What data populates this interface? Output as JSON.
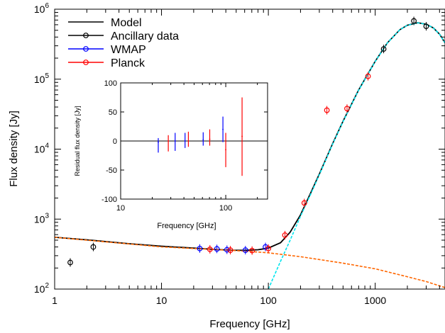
{
  "chart_data": [
    {
      "type": "scatter",
      "xlabel": "Frequency [GHz]",
      "ylabel": "Flux density [Jy]",
      "x_scale": "log",
      "y_scale": "log",
      "xlim": [
        1,
        4500
      ],
      "ylim": [
        100,
        1000000
      ],
      "x_ticks": [
        {
          "value": 1,
          "label": "1"
        },
        {
          "value": 10,
          "label": "10"
        },
        {
          "value": 100,
          "label": "100"
        },
        {
          "value": 1000,
          "label": "1000"
        }
      ],
      "y_ticks": [
        {
          "value": 100,
          "base": "10",
          "exp": "2"
        },
        {
          "value": 1000,
          "base": "10",
          "exp": "3"
        },
        {
          "value": 10000,
          "base": "10",
          "exp": "4"
        },
        {
          "value": 100000,
          "base": "10",
          "exp": "5"
        },
        {
          "value": 1000000,
          "base": "10",
          "exp": "6"
        }
      ],
      "grid": false,
      "legend_position": "top-left",
      "legend": [
        {
          "label": "Model",
          "color": "#000000",
          "marker": false
        },
        {
          "label": "Ancillary data",
          "color": "#000000",
          "marker": true
        },
        {
          "label": "WMAP",
          "color": "#0000ff",
          "marker": true
        },
        {
          "label": "Planck",
          "color": "#ff0000",
          "marker": true
        }
      ],
      "series": [
        {
          "name": "Model",
          "kind": "line",
          "color": "#000000",
          "x": [
            1,
            2,
            5,
            10,
            20,
            30,
            45,
            60,
            80,
            100,
            130,
            160,
            200,
            250,
            300,
            400,
            500,
            700,
            1000,
            1300,
            1700,
            2000,
            2500,
            3000,
            3500,
            4000,
            4500
          ],
          "y": [
            550,
            505,
            445,
            410,
            385,
            370,
            360,
            358,
            365,
            385,
            460,
            650,
            1150,
            2400,
            4400,
            12000,
            25000,
            70000,
            180000,
            330000,
            510000,
            590000,
            640000,
            610000,
            540000,
            440000,
            330000
          ]
        },
        {
          "name": "",
          "kind": "dashed",
          "color": "#00e5ee",
          "x": [
            100,
            130,
            160,
            200,
            250,
            300,
            400,
            500,
            700,
            1000,
            1300,
            1700,
            2000,
            2500,
            3000,
            3500,
            4000,
            4500
          ],
          "y": [
            100,
            250,
            500,
            1100,
            2300,
            4300,
            11800,
            24700,
            69500,
            179500,
            329500,
            509500,
            589500,
            639500,
            609500,
            539500,
            439500,
            329500
          ]
        },
        {
          "name": "",
          "kind": "dashed",
          "color": "#ff6600",
          "x": [
            1,
            2,
            5,
            10,
            20,
            50,
            100,
            200,
            500,
            1000,
            2000,
            3000,
            4500
          ],
          "y": [
            550,
            500,
            442,
            400,
            380,
            355,
            330,
            290,
            235,
            195,
            150,
            128,
            105
          ]
        },
        {
          "name": "Ancillary data",
          "kind": "points",
          "color": "#000000",
          "x": [
            1.4,
            2.3,
            1200,
            2300,
            3000
          ],
          "y": [
            240,
            400,
            270000,
            680000,
            570000
          ]
        },
        {
          "name": "WMAP",
          "kind": "points",
          "color": "#0000ff",
          "x": [
            22.8,
            33,
            41,
            61,
            94
          ],
          "y": [
            380,
            375,
            365,
            360,
            400
          ]
        },
        {
          "name": "Planck",
          "kind": "points",
          "color": "#ff0000",
          "x": [
            28.4,
            44.1,
            70.4,
            100,
            143,
            217,
            353,
            545,
            857
          ],
          "y": [
            370,
            360,
            355,
            380,
            590,
            1700,
            36000,
            38000,
            110000
          ]
        }
      ]
    },
    {
      "type": "scatter",
      "inset": true,
      "xlabel": "Frequency [GHz]",
      "ylabel": "Residual flux density [Jy]",
      "x_scale": "log",
      "xlim": [
        10,
        250
      ],
      "ylim": [
        -100,
        100
      ],
      "x_ticks": [
        {
          "value": 10,
          "label": "10"
        },
        {
          "value": 100,
          "label": "100"
        }
      ],
      "y_ticks": [
        {
          "value": 100,
          "label": "100"
        },
        {
          "value": 50,
          "label": "50"
        },
        {
          "value": 0,
          "label": "0"
        },
        {
          "value": -50,
          "label": "-50"
        },
        {
          "value": -100,
          "label": "-100"
        }
      ],
      "zero_line": true,
      "series": [
        {
          "name": "WMAP",
          "color": "#0000ff",
          "points": [
            {
              "x": 22.8,
              "y": -2,
              "lo": -20,
              "hi": 5
            },
            {
              "x": 33,
              "y": 0,
              "lo": -17,
              "hi": 14
            },
            {
              "x": 41,
              "y": 0,
              "lo": -12,
              "hi": 14
            },
            {
              "x": 61,
              "y": 2,
              "lo": -8,
              "hi": 15
            },
            {
              "x": 94,
              "y": 20,
              "lo": -2,
              "hi": 42
            }
          ]
        },
        {
          "name": "Planck",
          "color": "#ff0000",
          "points": [
            {
              "x": 28.4,
              "y": 0,
              "lo": -18,
              "hi": 10
            },
            {
              "x": 44.1,
              "y": 0,
              "lo": -10,
              "hi": 16
            },
            {
              "x": 70.4,
              "y": 3,
              "lo": -8,
              "hi": 20
            },
            {
              "x": 100,
              "y": -15,
              "lo": -45,
              "hi": 14
            },
            {
              "x": 143,
              "y": 8,
              "lo": -60,
              "hi": 75
            }
          ]
        }
      ]
    }
  ]
}
